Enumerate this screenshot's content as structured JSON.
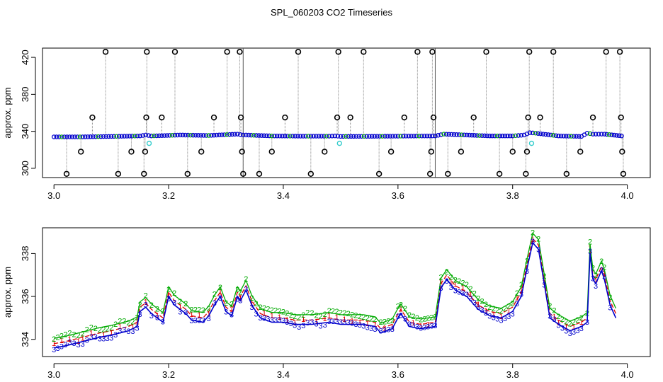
{
  "title": "SPL_060203  CO2 Timeseries",
  "chart_data": [
    {
      "type": "scatter",
      "panel": "top",
      "title": "SPL_060203  CO2 Timeseries",
      "xlabel": "",
      "ylabel": "approx. ppm",
      "xlim": [
        2.98,
        4.04
      ],
      "ylim": [
        290,
        430
      ],
      "x_ticks": [
        3.0,
        3.2,
        3.4,
        3.6,
        3.8,
        4.0
      ],
      "x_tick_labels": [
        "3.0",
        "3.2",
        "3.4",
        "3.6",
        "3.8",
        "4.0"
      ],
      "y_ticks": [
        300,
        340,
        380,
        420
      ],
      "y_tick_labels": [
        "300",
        "340",
        "380",
        "420"
      ],
      "grid": false,
      "colors": {
        "baseline": "#0000cc",
        "baseline_edge": "#00aa00",
        "outlier": "#000000",
        "outlier_line": "#888888",
        "flagged": "#33cccc"
      },
      "vertical_markers": [
        3.33,
        3.665
      ],
      "baseline_segments": [
        {
          "x": [
            3.0,
            3.05,
            3.1,
            3.15,
            3.16,
            3.17,
            3.22,
            3.27,
            3.32,
            3.33
          ],
          "y": [
            334,
            334,
            334.5,
            335,
            336,
            335,
            336,
            335.5,
            337,
            336
          ]
        },
        {
          "x": [
            3.335,
            3.38,
            3.43,
            3.48,
            3.49,
            3.5,
            3.55,
            3.6,
            3.66
          ],
          "y": [
            336,
            335,
            334.8,
            334.8,
            335,
            334.5,
            334.6,
            334.8,
            335
          ]
        },
        {
          "x": [
            3.665,
            3.68,
            3.72,
            3.76,
            3.8,
            3.82,
            3.83,
            3.84,
            3.88,
            3.92,
            3.93,
            3.94,
            3.96,
            3.99
          ],
          "y": [
            335,
            337,
            336,
            335,
            335,
            336,
            338.5,
            338,
            335,
            334.5,
            338,
            337,
            337,
            335
          ]
        }
      ],
      "outliers": [
        {
          "x": 3.022,
          "y": 294
        },
        {
          "x": 3.047,
          "y": 318
        },
        {
          "x": 3.067,
          "y": 355
        },
        {
          "x": 3.09,
          "y": 426
        },
        {
          "x": 3.112,
          "y": 294
        },
        {
          "x": 3.135,
          "y": 318
        },
        {
          "x": 3.157,
          "y": 294
        },
        {
          "x": 3.159,
          "y": 318
        },
        {
          "x": 3.161,
          "y": 355
        },
        {
          "x": 3.162,
          "y": 426
        },
        {
          "x": 3.188,
          "y": 355
        },
        {
          "x": 3.211,
          "y": 426
        },
        {
          "x": 3.233,
          "y": 294
        },
        {
          "x": 3.257,
          "y": 318
        },
        {
          "x": 3.279,
          "y": 355
        },
        {
          "x": 3.302,
          "y": 426
        },
        {
          "x": 3.324,
          "y": 426
        },
        {
          "x": 3.326,
          "y": 355
        },
        {
          "x": 3.328,
          "y": 318
        },
        {
          "x": 3.33,
          "y": 294
        },
        {
          "x": 3.358,
          "y": 294
        },
        {
          "x": 3.38,
          "y": 318
        },
        {
          "x": 3.403,
          "y": 355
        },
        {
          "x": 3.426,
          "y": 426
        },
        {
          "x": 3.448,
          "y": 294
        },
        {
          "x": 3.472,
          "y": 318
        },
        {
          "x": 3.494,
          "y": 355
        },
        {
          "x": 3.496,
          "y": 426
        },
        {
          "x": 3.517,
          "y": 355
        },
        {
          "x": 3.54,
          "y": 426
        },
        {
          "x": 3.567,
          "y": 294
        },
        {
          "x": 3.588,
          "y": 318
        },
        {
          "x": 3.611,
          "y": 355
        },
        {
          "x": 3.634,
          "y": 426
        },
        {
          "x": 3.656,
          "y": 294
        },
        {
          "x": 3.658,
          "y": 318
        },
        {
          "x": 3.66,
          "y": 426
        },
        {
          "x": 3.662,
          "y": 355
        },
        {
          "x": 3.687,
          "y": 294
        },
        {
          "x": 3.71,
          "y": 318
        },
        {
          "x": 3.732,
          "y": 355
        },
        {
          "x": 3.754,
          "y": 426
        },
        {
          "x": 3.777,
          "y": 294
        },
        {
          "x": 3.8,
          "y": 318
        },
        {
          "x": 3.823,
          "y": 294
        },
        {
          "x": 3.825,
          "y": 318
        },
        {
          "x": 3.827,
          "y": 355
        },
        {
          "x": 3.829,
          "y": 426
        },
        {
          "x": 3.848,
          "y": 355
        },
        {
          "x": 3.871,
          "y": 426
        },
        {
          "x": 3.894,
          "y": 294
        },
        {
          "x": 3.918,
          "y": 318
        },
        {
          "x": 3.94,
          "y": 355
        },
        {
          "x": 3.963,
          "y": 426
        },
        {
          "x": 3.987,
          "y": 426
        },
        {
          "x": 3.989,
          "y": 355
        },
        {
          "x": 3.991,
          "y": 318
        },
        {
          "x": 3.993,
          "y": 294
        }
      ],
      "flagged": [
        {
          "x": 3.166,
          "y": 327
        },
        {
          "x": 3.498,
          "y": 327
        },
        {
          "x": 3.833,
          "y": 327
        }
      ]
    },
    {
      "type": "line",
      "panel": "bottom",
      "xlabel": "",
      "ylabel": "approx. ppm",
      "xlim": [
        2.98,
        4.04
      ],
      "ylim": [
        333.2,
        339.2
      ],
      "x_ticks": [
        3.0,
        3.2,
        3.4,
        3.6,
        3.8,
        4.0
      ],
      "x_tick_labels": [
        "3.0",
        "3.2",
        "3.4",
        "3.6",
        "3.8",
        "4.0"
      ],
      "y_ticks": [
        334,
        336,
        338
      ],
      "y_tick_labels": [
        "334",
        "336",
        "338"
      ],
      "grid": false,
      "marker_labels": [
        "1",
        "2",
        "3"
      ],
      "series_colors": [
        "#dd0000",
        "#00aa00",
        "#0000cc"
      ],
      "series": [
        {
          "values_ref": "profile",
          "offset": 0.0
        },
        {
          "values_ref": "profile",
          "offset": 0.25
        },
        {
          "values_ref": "profile",
          "offset": -0.2
        }
      ],
      "x": [
        3.0,
        3.02,
        3.05,
        3.08,
        3.1,
        3.13,
        3.145,
        3.15,
        3.16,
        3.17,
        3.18,
        3.19,
        3.2,
        3.21,
        3.22,
        3.23,
        3.24,
        3.26,
        3.27,
        3.28,
        3.29,
        3.3,
        3.31,
        3.32,
        3.325,
        3.335,
        3.345,
        3.36,
        3.38,
        3.4,
        3.42,
        3.45,
        3.48,
        3.5,
        3.52,
        3.54,
        3.56,
        3.57,
        3.59,
        3.6,
        3.605,
        3.62,
        3.64,
        3.665,
        3.675,
        3.685,
        3.7,
        3.72,
        3.74,
        3.76,
        3.78,
        3.8,
        3.815,
        3.825,
        3.835,
        3.845,
        3.855,
        3.865,
        3.88,
        3.9,
        3.92,
        3.93,
        3.935,
        3.94,
        3.945,
        3.955,
        3.96,
        3.97,
        3.98
      ],
      "profile": [
        333.8,
        333.9,
        334.1,
        334.3,
        334.4,
        334.6,
        334.8,
        335.5,
        335.7,
        335.4,
        335.2,
        335.0,
        336.2,
        335.8,
        335.6,
        335.4,
        335.1,
        335.0,
        335.3,
        335.8,
        336.2,
        335.5,
        335.3,
        336.2,
        336.0,
        336.5,
        335.8,
        335.2,
        335.0,
        335.0,
        334.9,
        334.9,
        335.0,
        334.9,
        334.9,
        334.9,
        334.8,
        334.5,
        334.7,
        335.2,
        335.4,
        334.8,
        334.7,
        334.8,
        336.6,
        337.0,
        336.5,
        336.2,
        335.6,
        335.3,
        335.2,
        335.5,
        336.2,
        337.5,
        338.7,
        338.4,
        336.8,
        335.2,
        334.9,
        334.6,
        334.8,
        335.0,
        338.2,
        337.0,
        336.8,
        337.4,
        337.0,
        335.8,
        335.2
      ]
    }
  ]
}
